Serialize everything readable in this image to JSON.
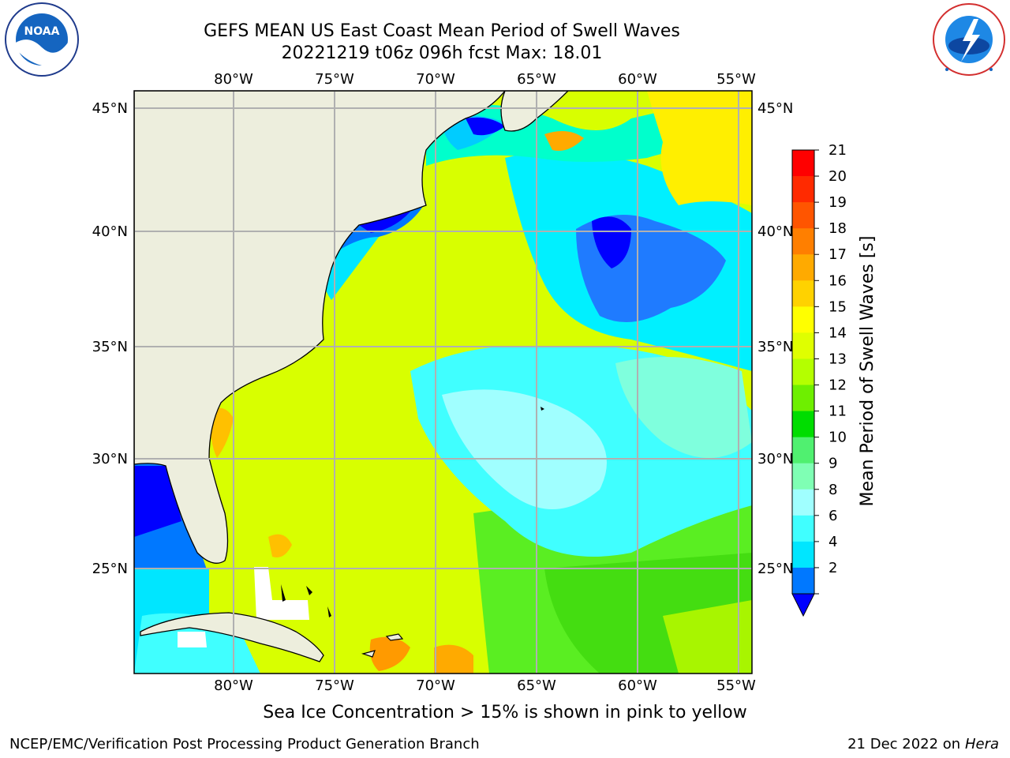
{
  "title": {
    "line1": "GEFS MEAN US East Coast Mean Period of Swell Waves",
    "line2": "20221219 t06z 096h fcst   Max: 18.01"
  },
  "map": {
    "lon_ticks": [
      "80°W",
      "75°W",
      "70°W",
      "65°W",
      "60°W",
      "55°W"
    ],
    "lat_ticks": [
      "45°N",
      "40°N",
      "35°N",
      "30°N",
      "25°N"
    ]
  },
  "colorbar": {
    "label": "Mean Period of Swell Waves [s]",
    "ticks": [
      "21",
      "20",
      "19",
      "18",
      "17",
      "16",
      "15",
      "14",
      "13",
      "12",
      "11",
      "10",
      "9",
      "8",
      "6",
      "4",
      "2"
    ],
    "colors": [
      "#ff0000",
      "#ff2a00",
      "#ff5500",
      "#ff7f00",
      "#ffaa00",
      "#ffd200",
      "#ffff00",
      "#dfff00",
      "#b4ff00",
      "#6eef00",
      "#00dd00",
      "#50f070",
      "#7fffb4",
      "#a0ffff",
      "#40ffff",
      "#00e6ff",
      "#0078ff"
    ],
    "under_color": "#0000ff"
  },
  "footer_note": "Sea Ice Concentration > 15% is shown in pink to yellow",
  "credit_left": "NCEP/EMC/Verification Post Processing Product Generation Branch",
  "credit_date": "21 Dec 2022 on",
  "credit_host": "Hera",
  "logos": {
    "noaa": {
      "icon": "noaa-logo",
      "text": "NOAA",
      "ring_text": "NATIONAL OCEANIC AND ATMOSPHERIC ADMINISTRATION · U.S. DEPARTMENT OF COMMERCE"
    },
    "nws": {
      "icon": "nws-logo",
      "ring_text": "NATIONAL WEATHER SERVICE"
    }
  }
}
